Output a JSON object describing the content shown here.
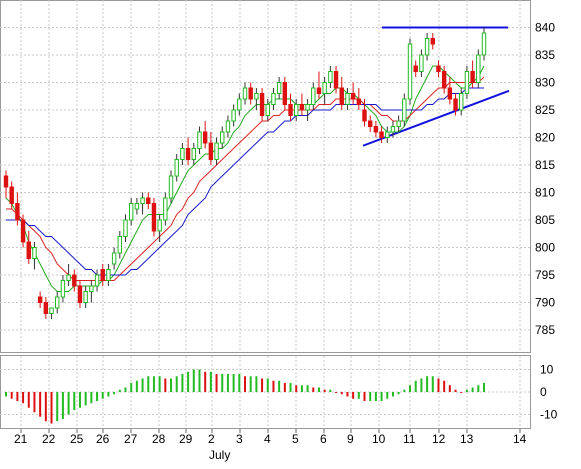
{
  "chart_data": {
    "type": "candlestick",
    "title": "",
    "x_month_label": "July",
    "x_ticks": [
      "21",
      "22",
      "25",
      "26",
      "27",
      "28",
      "29",
      "2",
      "3",
      "4",
      "5",
      "6",
      "9",
      "10",
      "11",
      "12",
      "13",
      "14"
    ],
    "price_axis": {
      "ylim": [
        781,
        845
      ],
      "ticks": [
        785,
        790,
        795,
        800,
        805,
        810,
        815,
        820,
        825,
        830,
        835,
        840
      ]
    },
    "osc_axis": {
      "ylim": [
        -16,
        16
      ],
      "ticks": [
        10,
        0,
        -10
      ]
    },
    "grid": true,
    "colors": {
      "up": "#22bb22",
      "down": "#dd1111",
      "ma_fast": "#22aa22",
      "ma_mid": "#dd2222",
      "ma_slow": "#1a1acc",
      "trendline": "#1111dd",
      "grid": "#c8c8c8"
    },
    "candles": [
      {
        "o": 813,
        "h": 814,
        "l": 809,
        "c": 811
      },
      {
        "o": 811,
        "h": 812,
        "l": 807,
        "c": 808
      },
      {
        "o": 808,
        "h": 810,
        "l": 804,
        "c": 805
      },
      {
        "o": 805,
        "h": 806,
        "l": 800,
        "c": 801
      },
      {
        "o": 801,
        "h": 803,
        "l": 797,
        "c": 798
      },
      {
        "o": 798,
        "h": 801,
        "l": 796,
        "c": 800
      },
      {
        "o": 791,
        "h": 792,
        "l": 789,
        "c": 790
      },
      {
        "o": 790,
        "h": 791,
        "l": 787,
        "c": 788
      },
      {
        "o": 788,
        "h": 789,
        "l": 787,
        "c": 789
      },
      {
        "o": 789,
        "h": 792,
        "l": 788,
        "c": 791
      },
      {
        "o": 791,
        "h": 795,
        "l": 790,
        "c": 794
      },
      {
        "o": 794,
        "h": 797,
        "l": 793,
        "c": 795
      },
      {
        "o": 795,
        "h": 796,
        "l": 792,
        "c": 793
      },
      {
        "o": 793,
        "h": 794,
        "l": 789,
        "c": 790
      },
      {
        "o": 790,
        "h": 793,
        "l": 789,
        "c": 792
      },
      {
        "o": 792,
        "h": 794,
        "l": 790,
        "c": 793
      },
      {
        "o": 793,
        "h": 796,
        "l": 792,
        "c": 795
      },
      {
        "o": 796,
        "h": 797,
        "l": 793,
        "c": 794
      },
      {
        "o": 794,
        "h": 797,
        "l": 793,
        "c": 796
      },
      {
        "o": 797,
        "h": 800,
        "l": 796,
        "c": 799
      },
      {
        "o": 799,
        "h": 803,
        "l": 798,
        "c": 802
      },
      {
        "o": 802,
        "h": 806,
        "l": 801,
        "c": 805
      },
      {
        "o": 805,
        "h": 809,
        "l": 804,
        "c": 808
      },
      {
        "o": 807,
        "h": 809,
        "l": 806,
        "c": 808
      },
      {
        "o": 808,
        "h": 810,
        "l": 806,
        "c": 809
      },
      {
        "o": 809,
        "h": 810,
        "l": 807,
        "c": 808
      },
      {
        "o": 808,
        "h": 809,
        "l": 802,
        "c": 803
      },
      {
        "o": 803,
        "h": 806,
        "l": 801,
        "c": 805
      },
      {
        "o": 805,
        "h": 810,
        "l": 804,
        "c": 809
      },
      {
        "o": 809,
        "h": 814,
        "l": 808,
        "c": 813
      },
      {
        "o": 813,
        "h": 817,
        "l": 812,
        "c": 816
      },
      {
        "o": 816,
        "h": 819,
        "l": 815,
        "c": 818
      },
      {
        "o": 818,
        "h": 820,
        "l": 815,
        "c": 816
      },
      {
        "o": 816,
        "h": 819,
        "l": 815,
        "c": 818
      },
      {
        "o": 818,
        "h": 822,
        "l": 817,
        "c": 821
      },
      {
        "o": 821,
        "h": 823,
        "l": 818,
        "c": 819
      },
      {
        "o": 819,
        "h": 821,
        "l": 815,
        "c": 816
      },
      {
        "o": 816,
        "h": 820,
        "l": 815,
        "c": 819
      },
      {
        "o": 819,
        "h": 822,
        "l": 818,
        "c": 821
      },
      {
        "o": 821,
        "h": 824,
        "l": 820,
        "c": 823
      },
      {
        "o": 823,
        "h": 826,
        "l": 822,
        "c": 825
      },
      {
        "o": 825,
        "h": 828,
        "l": 824,
        "c": 827
      },
      {
        "o": 827,
        "h": 830,
        "l": 826,
        "c": 829
      },
      {
        "o": 829,
        "h": 830,
        "l": 826,
        "c": 827
      },
      {
        "o": 827,
        "h": 829,
        "l": 825,
        "c": 828
      },
      {
        "o": 828,
        "h": 829,
        "l": 823,
        "c": 824
      },
      {
        "o": 824,
        "h": 827,
        "l": 823,
        "c": 826
      },
      {
        "o": 826,
        "h": 829,
        "l": 825,
        "c": 828
      },
      {
        "o": 828,
        "h": 831,
        "l": 827,
        "c": 830
      },
      {
        "o": 830,
        "h": 831,
        "l": 825,
        "c": 826
      },
      {
        "o": 826,
        "h": 828,
        "l": 823,
        "c": 824
      },
      {
        "o": 824,
        "h": 827,
        "l": 823,
        "c": 826
      },
      {
        "o": 826,
        "h": 828,
        "l": 824,
        "c": 825
      },
      {
        "o": 825,
        "h": 827,
        "l": 823,
        "c": 826
      },
      {
        "o": 826,
        "h": 830,
        "l": 825,
        "c": 829
      },
      {
        "o": 829,
        "h": 832,
        "l": 827,
        "c": 828
      },
      {
        "o": 828,
        "h": 831,
        "l": 826,
        "c": 830
      },
      {
        "o": 830,
        "h": 833,
        "l": 829,
        "c": 832
      },
      {
        "o": 832,
        "h": 833,
        "l": 828,
        "c": 829
      },
      {
        "o": 829,
        "h": 831,
        "l": 825,
        "c": 826
      },
      {
        "o": 826,
        "h": 829,
        "l": 825,
        "c": 828
      },
      {
        "o": 828,
        "h": 830,
        "l": 826,
        "c": 827
      },
      {
        "o": 827,
        "h": 829,
        "l": 825,
        "c": 826
      },
      {
        "o": 825,
        "h": 827,
        "l": 822,
        "c": 823
      },
      {
        "o": 823,
        "h": 824,
        "l": 821,
        "c": 822
      },
      {
        "o": 822,
        "h": 823,
        "l": 820,
        "c": 821
      },
      {
        "o": 821,
        "h": 822,
        "l": 819,
        "c": 820
      },
      {
        "o": 820,
        "h": 822,
        "l": 819,
        "c": 821
      },
      {
        "o": 821,
        "h": 823,
        "l": 820,
        "c": 822
      },
      {
        "o": 822,
        "h": 824,
        "l": 821,
        "c": 823
      },
      {
        "o": 823,
        "h": 828,
        "l": 822,
        "c": 827
      },
      {
        "o": 827,
        "h": 838,
        "l": 826,
        "c": 837
      },
      {
        "o": 833,
        "h": 834,
        "l": 831,
        "c": 832
      },
      {
        "o": 832,
        "h": 836,
        "l": 831,
        "c": 835
      },
      {
        "o": 835,
        "h": 839,
        "l": 834,
        "c": 838
      },
      {
        "o": 838,
        "h": 839,
        "l": 836,
        "c": 837
      },
      {
        "o": 833,
        "h": 834,
        "l": 831,
        "c": 832
      },
      {
        "o": 832,
        "h": 833,
        "l": 828,
        "c": 829
      },
      {
        "o": 829,
        "h": 831,
        "l": 826,
        "c": 827
      },
      {
        "o": 827,
        "h": 828,
        "l": 824,
        "c": 825
      },
      {
        "o": 825,
        "h": 829,
        "l": 824,
        "c": 828
      },
      {
        "o": 828,
        "h": 833,
        "l": 827,
        "c": 832
      },
      {
        "o": 832,
        "h": 834,
        "l": 829,
        "c": 830
      },
      {
        "o": 830,
        "h": 836,
        "l": 829,
        "c": 835
      },
      {
        "o": 835,
        "h": 840,
        "l": 834,
        "c": 839
      }
    ],
    "series": [
      {
        "key": "ma_fast",
        "values": [
          809,
          808,
          806,
          804,
          801,
          799,
          797,
          795,
          793,
          792,
          792,
          792,
          793,
          793,
          793,
          793,
          793,
          794,
          794,
          795,
          797,
          799,
          801,
          803,
          805,
          806,
          806,
          806,
          806,
          808,
          810,
          812,
          814,
          815,
          816,
          817,
          817,
          818,
          818,
          819,
          821,
          822,
          824,
          825,
          826,
          826,
          826,
          827,
          827,
          827,
          827,
          826,
          826,
          826,
          826,
          827,
          828,
          828,
          829,
          829,
          828,
          828,
          827,
          826,
          825,
          824,
          822,
          821,
          821,
          821,
          822,
          824,
          827,
          829,
          831,
          833,
          833,
          832,
          831,
          830,
          829,
          829,
          830,
          831,
          833
        ]
      },
      {
        "key": "ma_mid",
        "values": [
          807,
          807,
          806,
          805,
          804,
          803,
          802,
          800,
          799,
          797,
          796,
          795,
          794,
          794,
          794,
          794,
          794,
          794,
          794,
          794,
          795,
          796,
          797,
          798,
          799,
          800,
          801,
          802,
          803,
          804,
          806,
          807,
          809,
          810,
          812,
          813,
          814,
          815,
          816,
          817,
          818,
          819,
          820,
          821,
          822,
          823,
          823,
          824,
          824,
          825,
          825,
          825,
          825,
          825,
          825,
          826,
          826,
          826,
          827,
          827,
          827,
          827,
          827,
          826,
          826,
          825,
          824,
          824,
          823,
          823,
          823,
          824,
          825,
          826,
          827,
          828,
          829,
          829,
          830,
          830,
          830,
          830,
          830,
          830,
          831
        ]
      },
      {
        "key": "ma_slow",
        "values": [
          805,
          805,
          805,
          805,
          804,
          804,
          803,
          802,
          802,
          801,
          800,
          799,
          798,
          797,
          796,
          796,
          795,
          795,
          795,
          795,
          795,
          795,
          796,
          796,
          797,
          798,
          799,
          800,
          801,
          802,
          803,
          804,
          806,
          807,
          808,
          809,
          811,
          812,
          813,
          814,
          815,
          816,
          817,
          818,
          819,
          820,
          821,
          821,
          822,
          823,
          823,
          824,
          824,
          824,
          825,
          825,
          825,
          825,
          826,
          826,
          826,
          826,
          826,
          826,
          826,
          826,
          825,
          825,
          825,
          825,
          825,
          825,
          825,
          825,
          826,
          826,
          827,
          827,
          828,
          828,
          828,
          829,
          829,
          829,
          829
        ]
      }
    ],
    "oscillator": [
      -2,
      -3,
      -4,
      -5,
      -7,
      -9,
      -11,
      -13,
      -14,
      -13,
      -12,
      -10,
      -8,
      -7,
      -6,
      -5,
      -4,
      -3,
      -2,
      -1,
      1,
      2,
      4,
      5,
      6,
      7,
      7,
      7,
      6,
      6,
      7,
      8,
      9,
      10,
      10,
      9,
      9,
      8,
      8,
      8,
      8,
      8,
      7,
      7,
      7,
      6,
      6,
      5,
      5,
      4,
      4,
      3,
      3,
      3,
      2,
      2,
      1,
      1,
      0,
      -1,
      -2,
      -3,
      -3,
      -4,
      -4,
      -4,
      -4,
      -3,
      -2,
      -1,
      1,
      3,
      5,
      6,
      7,
      7,
      6,
      5,
      3,
      1,
      0,
      1,
      2,
      3,
      4
    ]
  }
}
